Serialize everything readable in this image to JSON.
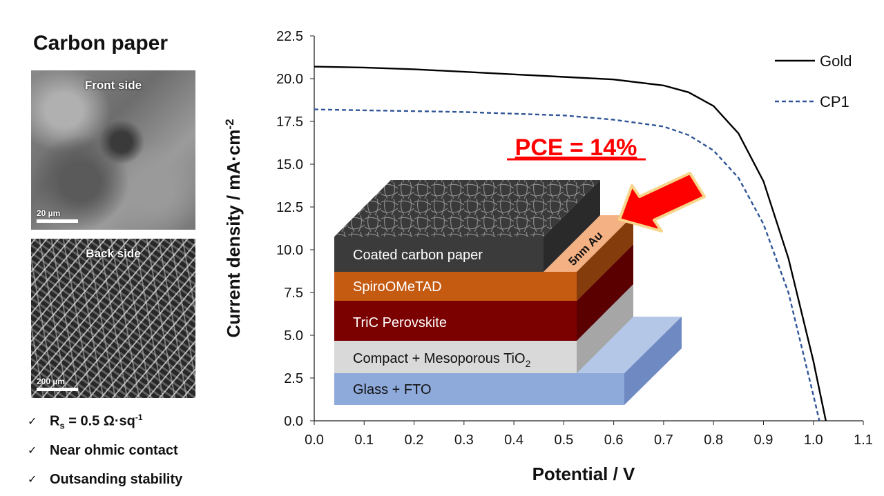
{
  "left_panel": {
    "title": "Carbon paper",
    "front_label": "Front side",
    "front_scale": "20 µm",
    "back_label": "Back side",
    "back_scale": "200 µm",
    "checklist": [
      {
        "prefix": "R",
        "sub": "s",
        "rest": " = 0.5 Ω·sq",
        "sup": "-1"
      },
      {
        "text": "Near ohmic contact"
      },
      {
        "text": "Outsanding stability"
      }
    ]
  },
  "chart_data": {
    "type": "line",
    "xlabel": "Potential / V",
    "ylabel": "Current density / mA·cm",
    "ylabel_sup": "-2",
    "xlim": [
      0.0,
      1.1
    ],
    "ylim": [
      0.0,
      22.5
    ],
    "x_ticks": [
      "0.0",
      "0.1",
      "0.2",
      "0.3",
      "0.4",
      "0.5",
      "0.6",
      "0.7",
      "0.8",
      "0.9",
      "1.0",
      "1.1"
    ],
    "y_ticks": [
      "0.0",
      "2.5",
      "5.0",
      "7.5",
      "10.0",
      "12.5",
      "15.0",
      "17.5",
      "20.0",
      "22.5"
    ],
    "legend_position": "top-right",
    "series": [
      {
        "name": "Gold",
        "color": "#000000",
        "dash": "solid",
        "x": [
          0.0,
          0.1,
          0.2,
          0.3,
          0.4,
          0.5,
          0.6,
          0.7,
          0.75,
          0.8,
          0.85,
          0.9,
          0.95,
          1.0,
          1.025
        ],
        "y": [
          20.7,
          20.65,
          20.55,
          20.4,
          20.25,
          20.1,
          19.95,
          19.6,
          19.2,
          18.4,
          16.8,
          14.0,
          9.5,
          3.5,
          0.0
        ]
      },
      {
        "name": "CP1",
        "color": "#2f5597",
        "dash": "dashed",
        "x": [
          0.0,
          0.1,
          0.2,
          0.3,
          0.4,
          0.5,
          0.6,
          0.7,
          0.75,
          0.8,
          0.85,
          0.9,
          0.95,
          1.0,
          1.012
        ],
        "y": [
          18.2,
          18.15,
          18.1,
          18.05,
          17.95,
          17.85,
          17.6,
          17.2,
          16.7,
          15.8,
          14.2,
          11.5,
          7.5,
          1.5,
          0.0
        ]
      }
    ],
    "annotation": "PCE = 14%"
  },
  "device_stack": {
    "layers": [
      "Coated carbon paper",
      "SpiroOMeTAD",
      "TriC Perovskite",
      "Compact + Mesoporous TiO",
      "Glass + FTO"
    ],
    "tio_sub": "2",
    "au_label": "5nm Au",
    "colors": {
      "glass": "#8eaadb",
      "tio2": "#d9d9d9",
      "perovskite": "#7b0000",
      "spiro": "#c55a11",
      "au": "#f4b183",
      "carbon": "#3b3b3b",
      "arrow": "#ff0000"
    }
  }
}
